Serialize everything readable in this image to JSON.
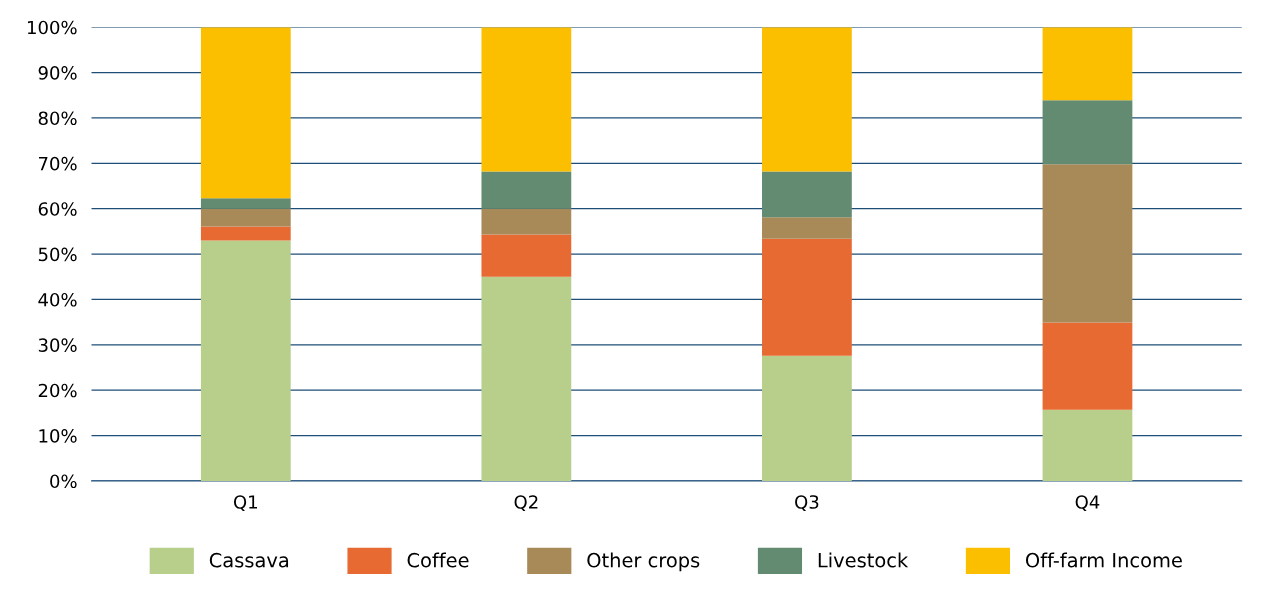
{
  "chart_data": {
    "type": "bar",
    "stacked": true,
    "categories": [
      "Q1",
      "Q2",
      "Q3",
      "Q4"
    ],
    "series": [
      {
        "name": "Cassava",
        "color": "#b8cf8b",
        "values": [
          53,
          45,
          27.6,
          15.7
        ]
      },
      {
        "name": "Coffee",
        "color": "#e66a32",
        "values": [
          3.1,
          9.3,
          25.8,
          19.2
        ]
      },
      {
        "name": "Other crops",
        "color": "#a88a58",
        "values": [
          3.9,
          5.7,
          4.7,
          34.9
        ]
      },
      {
        "name": "Livestock",
        "color": "#628b72",
        "values": [
          2.3,
          8.2,
          10.1,
          14.1
        ]
      },
      {
        "name": "Off-farm Income",
        "color": "#fbbf00",
        "values": [
          37.7,
          31.8,
          31.8,
          16.1
        ]
      }
    ],
    "ylim": [
      0,
      100
    ],
    "yticks": [
      {
        "value": 0,
        "label": "0%"
      },
      {
        "value": 10,
        "label": "10%"
      },
      {
        "value": 20,
        "label": "20%"
      },
      {
        "value": 30,
        "label": "30%"
      },
      {
        "value": 40,
        "label": "40%"
      },
      {
        "value": 50,
        "label": "50%"
      },
      {
        "value": 60,
        "label": "60%"
      },
      {
        "value": 70,
        "label": "70%"
      },
      {
        "value": 80,
        "label": "80%"
      },
      {
        "value": 90,
        "label": "90%"
      },
      {
        "value": 100,
        "label": "100%"
      }
    ],
    "grid": "y",
    "legend": "bottom"
  }
}
